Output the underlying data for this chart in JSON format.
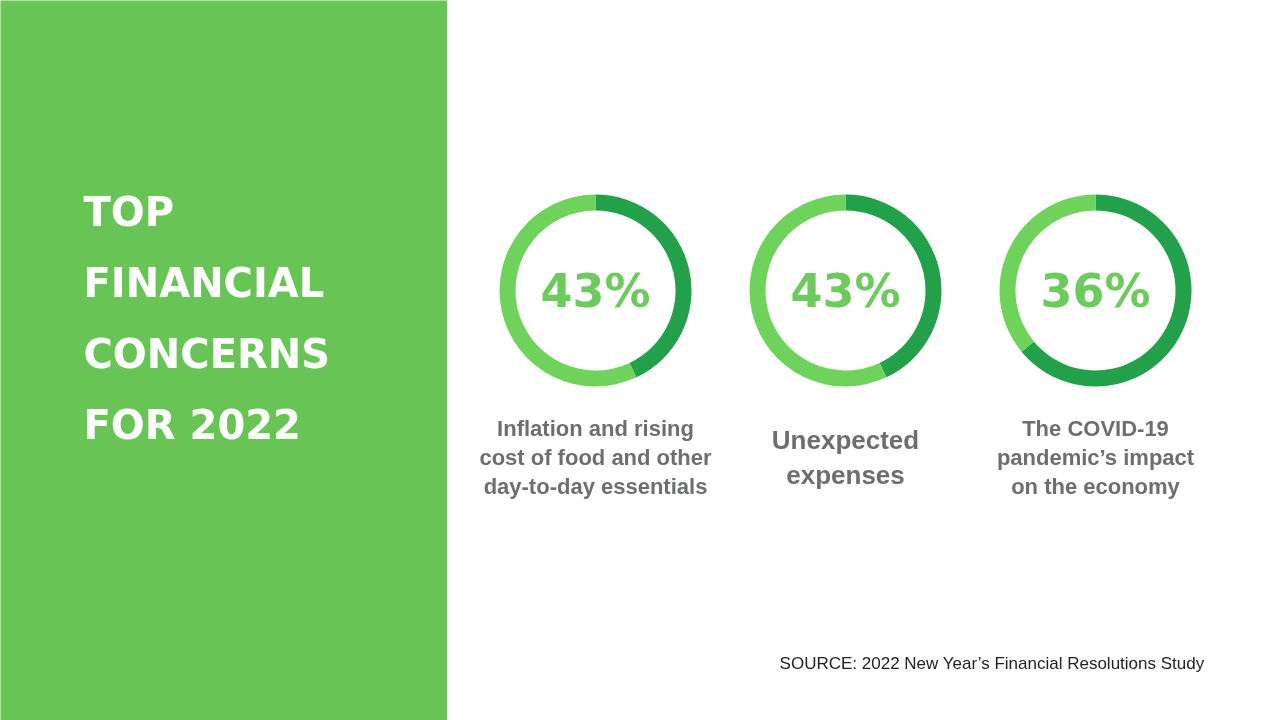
{
  "chart_data": [
    {
      "type": "other",
      "title": "TOP FINANCIAL CONCERNS FOR 2022"
    },
    {
      "type": "donut",
      "title": "Inflation and rising cost of food and other day-to-day essentials",
      "categories": [
        null,
        null
      ],
      "values": [
        43,
        57
      ],
      "colors": [
        "#22a04a",
        "#6fd35b"
      ],
      "value_labels": [
        "43%",
        null
      ]
    },
    {
      "type": "donut",
      "title": "Unexpected expenses",
      "categories": [
        null,
        null
      ],
      "values": [
        43,
        57
      ],
      "colors": [
        "#22a04a",
        "#6fd35b"
      ],
      "value_labels": [
        "43%",
        null
      ]
    },
    {
      "type": "donut",
      "title": "The COVID-19 pandemic’s impact on the economy",
      "categories": [
        null,
        null
      ],
      "values": [
        64,
        36
      ],
      "colors": [
        "#22a04a",
        "#6fd35b"
      ],
      "value_labels": [
        null,
        "36%"
      ],
      "annotations": [
        "SOURCE: 2022 New Year’s Financial Resolutions Study"
      ]
    }
  ]
}
